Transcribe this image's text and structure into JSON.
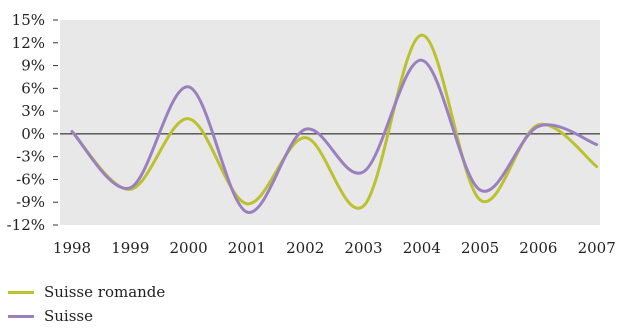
{
  "chart_data": {
    "type": "line",
    "title": "",
    "xlabel": "",
    "ylabel": "",
    "x": [
      "1998",
      "1999",
      "2000",
      "2001",
      "2002",
      "2003",
      "2004",
      "2005",
      "2006",
      "2007"
    ],
    "ylim": [
      -12,
      15
    ],
    "y_ticks": [
      "15%",
      "12%",
      "9%",
      "6%",
      "3%",
      "0%",
      "-3%",
      "-6%",
      "-9%",
      "-12%"
    ],
    "y_tick_values": [
      15,
      12,
      9,
      6,
      3,
      0,
      -3,
      -6,
      -9,
      -12
    ],
    "grid": false,
    "plot_background": "#e8e8e8",
    "legend_position": "bottom-left",
    "series": [
      {
        "name": "Suisse romande",
        "color": "#bcc12f",
        "values": [
          0.3,
          -7.3,
          2.0,
          -9.2,
          -0.5,
          -9.5,
          13.0,
          -8.7,
          1.2,
          -4.3
        ]
      },
      {
        "name": "Suisse",
        "color": "#9b80c0",
        "values": [
          0.3,
          -7.1,
          6.2,
          -10.3,
          0.6,
          -5.0,
          9.7,
          -7.4,
          1.0,
          -1.4
        ]
      }
    ]
  }
}
